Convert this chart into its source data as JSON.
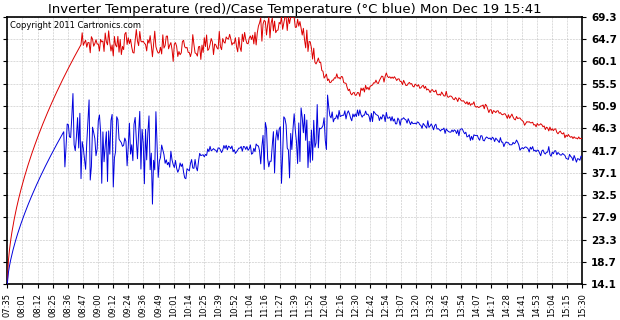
{
  "title": "Inverter Temperature (red)/Case Temperature (°C blue) Mon Dec 19 15:41",
  "copyright": "Copyright 2011 Cartronics.com",
  "yticks": [
    14.1,
    18.7,
    23.3,
    27.9,
    32.5,
    37.1,
    41.7,
    46.3,
    50.9,
    55.5,
    60.1,
    64.7,
    69.3
  ],
  "ymin": 14.1,
  "ymax": 69.3,
  "background_color": "#ffffff",
  "grid_color": "#bbbbbb",
  "red_color": "#dd0000",
  "blue_color": "#0000dd",
  "xtick_labels": [
    "07:35",
    "08:01",
    "08:12",
    "08:25",
    "08:36",
    "08:47",
    "09:00",
    "09:12",
    "09:24",
    "09:36",
    "09:49",
    "10:01",
    "10:14",
    "10:25",
    "10:39",
    "10:52",
    "11:04",
    "11:16",
    "11:27",
    "11:39",
    "11:52",
    "12:04",
    "12:16",
    "12:30",
    "12:42",
    "12:54",
    "13:07",
    "13:20",
    "13:32",
    "13:45",
    "13:54",
    "14:07",
    "14:17",
    "14:28",
    "14:41",
    "14:53",
    "15:04",
    "15:15",
    "15:30"
  ]
}
